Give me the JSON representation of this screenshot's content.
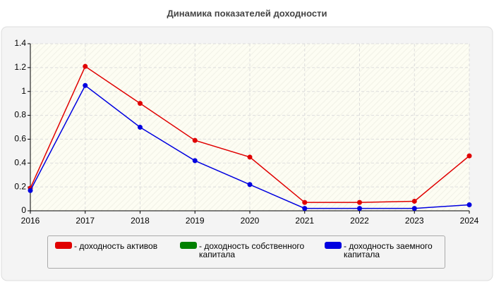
{
  "chart_data": {
    "type": "line",
    "title": "Динамика показателей доходности",
    "x": [
      2016,
      2017,
      2018,
      2019,
      2020,
      2021,
      2022,
      2023,
      2024
    ],
    "xlim": [
      2016,
      2024
    ],
    "xticks": [
      2016,
      2017,
      2018,
      2019,
      2020,
      2021,
      2022,
      2023,
      2024
    ],
    "ylim": [
      0,
      1.4
    ],
    "yticks": [
      0,
      0.2,
      0.4,
      0.6,
      0.8,
      1,
      1.2,
      1.4
    ],
    "grid": true,
    "legend": "bottom",
    "series": [
      {
        "name": "- доходность активов",
        "color": "#e00000",
        "values": [
          0.19,
          1.21,
          0.9,
          0.59,
          0.45,
          0.07,
          0.07,
          0.08,
          0.46
        ]
      },
      {
        "name": "- доходность собственного капитала",
        "color": "#008000",
        "values": [
          null,
          null,
          null,
          null,
          null,
          null,
          null,
          null,
          null
        ]
      },
      {
        "name": "- доходность заемного капитала",
        "color": "#0000e0",
        "values": [
          0.17,
          1.05,
          0.7,
          0.42,
          0.22,
          0.02,
          0.02,
          0.02,
          0.05
        ]
      }
    ]
  }
}
